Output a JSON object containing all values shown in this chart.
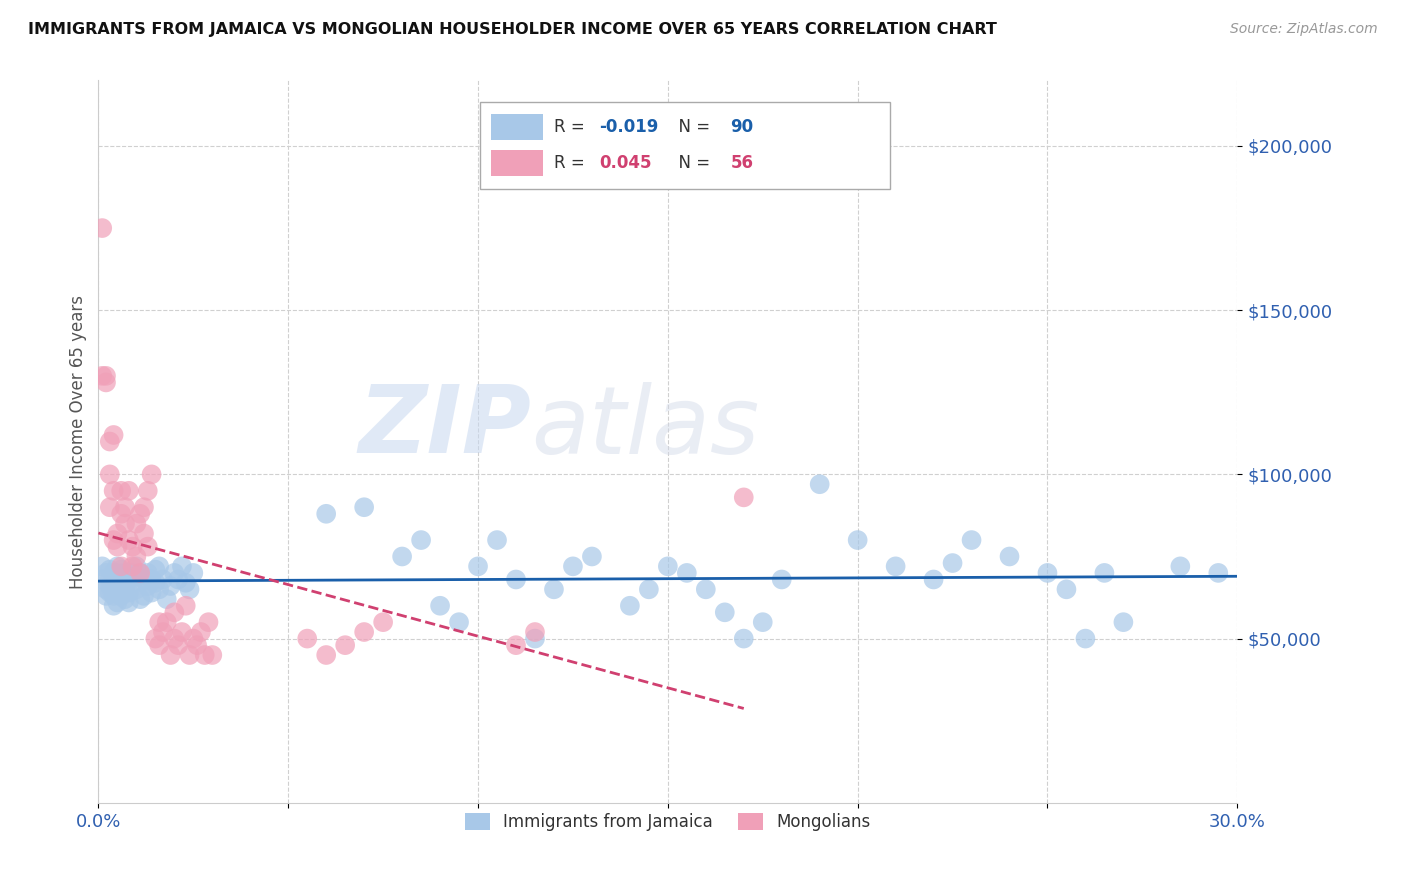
{
  "title": "IMMIGRANTS FROM JAMAICA VS MONGOLIAN HOUSEHOLDER INCOME OVER 65 YEARS CORRELATION CHART",
  "source": "Source: ZipAtlas.com",
  "ylabel": "Householder Income Over 65 years",
  "xlim": [
    0.0,
    0.3
  ],
  "ylim": [
    0,
    220000
  ],
  "yticks": [
    50000,
    100000,
    150000,
    200000
  ],
  "ytick_labels": [
    "$50,000",
    "$100,000",
    "$150,000",
    "$200,000"
  ],
  "xticks": [
    0.0,
    0.05,
    0.1,
    0.15,
    0.2,
    0.25,
    0.3
  ],
  "xtick_labels": [
    "0.0%",
    "",
    "",
    "",
    "",
    "",
    "30.0%"
  ],
  "watermark_zip": "ZIP",
  "watermark_atlas": "atlas",
  "legend_jamaica_R": "-0.019",
  "legend_jamaica_N": "90",
  "legend_mongolian_R": "0.045",
  "legend_mongolian_N": "56",
  "color_jamaica": "#a8c8e8",
  "color_mongolian": "#f0a0b8",
  "color_line_jamaica": "#1a5faa",
  "color_line_mongolian": "#d04070",
  "color_axis_text": "#3060b0",
  "color_title": "#111111",
  "color_source": "#999999",
  "color_grid": "#d0d0d0",
  "color_watermark": "#c8d8f0",
  "jamaica_x": [
    0.001,
    0.001,
    0.002,
    0.002,
    0.002,
    0.003,
    0.003,
    0.003,
    0.003,
    0.004,
    0.004,
    0.004,
    0.004,
    0.005,
    0.005,
    0.005,
    0.005,
    0.005,
    0.006,
    0.006,
    0.006,
    0.006,
    0.007,
    0.007,
    0.007,
    0.008,
    0.008,
    0.008,
    0.009,
    0.009,
    0.01,
    0.01,
    0.01,
    0.011,
    0.011,
    0.012,
    0.012,
    0.013,
    0.013,
    0.014,
    0.014,
    0.015,
    0.015,
    0.016,
    0.016,
    0.017,
    0.018,
    0.019,
    0.02,
    0.021,
    0.022,
    0.023,
    0.024,
    0.025,
    0.06,
    0.07,
    0.08,
    0.085,
    0.09,
    0.095,
    0.1,
    0.105,
    0.11,
    0.115,
    0.12,
    0.125,
    0.13,
    0.14,
    0.145,
    0.15,
    0.155,
    0.16,
    0.165,
    0.17,
    0.175,
    0.18,
    0.19,
    0.2,
    0.21,
    0.22,
    0.225,
    0.23,
    0.24,
    0.25,
    0.255,
    0.26,
    0.265,
    0.27,
    0.285,
    0.295
  ],
  "jamaica_y": [
    68000,
    72000,
    65000,
    70000,
    63000,
    66000,
    71000,
    68000,
    64000,
    70000,
    67000,
    63000,
    60000,
    72000,
    68000,
    65000,
    61000,
    70000,
    66000,
    63000,
    71000,
    68000,
    65000,
    62000,
    70000,
    68000,
    64000,
    61000,
    70000,
    67000,
    69000,
    65000,
    72000,
    62000,
    70000,
    68000,
    63000,
    66000,
    70000,
    64000,
    68000,
    67000,
    71000,
    65000,
    72000,
    68000,
    62000,
    66000,
    70000,
    68000,
    72000,
    67000,
    65000,
    70000,
    88000,
    90000,
    75000,
    80000,
    60000,
    55000,
    72000,
    80000,
    68000,
    50000,
    65000,
    72000,
    75000,
    60000,
    65000,
    72000,
    70000,
    65000,
    58000,
    50000,
    55000,
    68000,
    97000,
    80000,
    72000,
    68000,
    73000,
    80000,
    75000,
    70000,
    65000,
    50000,
    70000,
    55000,
    72000,
    70000
  ],
  "mongolian_x": [
    0.001,
    0.001,
    0.002,
    0.002,
    0.003,
    0.003,
    0.003,
    0.004,
    0.004,
    0.004,
    0.005,
    0.005,
    0.006,
    0.006,
    0.006,
    0.007,
    0.007,
    0.008,
    0.008,
    0.009,
    0.009,
    0.01,
    0.01,
    0.011,
    0.011,
    0.012,
    0.012,
    0.013,
    0.013,
    0.014,
    0.015,
    0.016,
    0.016,
    0.017,
    0.018,
    0.019,
    0.02,
    0.02,
    0.021,
    0.022,
    0.023,
    0.024,
    0.025,
    0.026,
    0.027,
    0.028,
    0.029,
    0.03,
    0.055,
    0.06,
    0.065,
    0.07,
    0.075,
    0.11,
    0.115,
    0.17
  ],
  "mongolian_y": [
    175000,
    130000,
    130000,
    128000,
    110000,
    100000,
    90000,
    112000,
    80000,
    95000,
    82000,
    78000,
    88000,
    72000,
    95000,
    85000,
    90000,
    95000,
    80000,
    78000,
    72000,
    85000,
    75000,
    88000,
    70000,
    82000,
    90000,
    78000,
    95000,
    100000,
    50000,
    48000,
    55000,
    52000,
    55000,
    45000,
    58000,
    50000,
    48000,
    52000,
    60000,
    45000,
    50000,
    48000,
    52000,
    45000,
    55000,
    45000,
    50000,
    45000,
    48000,
    52000,
    55000,
    48000,
    52000,
    93000
  ]
}
